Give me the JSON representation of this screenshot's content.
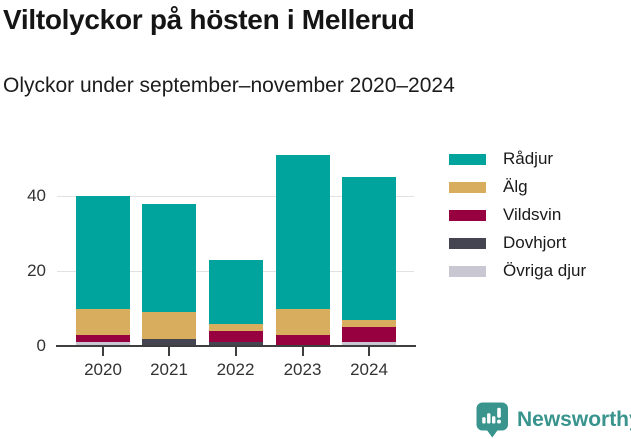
{
  "header": {
    "title": "Viltolyckor på hösten i Mellerud",
    "subtitle": "Olyckor under september–november 2020–2024"
  },
  "chart_data": {
    "type": "bar",
    "stacked": true,
    "title": "Viltolyckor på hösten i Mellerud",
    "subtitle": "Olyckor under september–november 2020–2024",
    "categories": [
      "2020",
      "2021",
      "2022",
      "2023",
      "2024"
    ],
    "series": [
      {
        "name": "Rådjur",
        "color": "#00a49c",
        "values": [
          30,
          29,
          17,
          41,
          38
        ]
      },
      {
        "name": "Älg",
        "color": "#d9ad5e",
        "values": [
          7,
          7,
          2,
          7,
          2
        ]
      },
      {
        "name": "Vildsvin",
        "color": "#980140",
        "values": [
          2,
          0,
          3,
          3,
          4
        ]
      },
      {
        "name": "Dovhjort",
        "color": "#454451",
        "values": [
          0,
          2,
          1,
          0,
          0
        ]
      },
      {
        "name": "Övriga djur",
        "color": "#c9c8d2",
        "values": [
          1,
          0,
          0,
          0,
          1
        ]
      }
    ],
    "xlabel": "",
    "ylabel": "",
    "yticks": [
      0,
      20,
      40
    ],
    "ylim": [
      0,
      55
    ],
    "grid": "horizontal-only",
    "legend_position": "right",
    "axis_color": "#3e3e3e",
    "grid_color": "#e2e2e5",
    "label_color": "#333333"
  },
  "brand": {
    "name": "Newsworthy",
    "color": "#38948d"
  }
}
